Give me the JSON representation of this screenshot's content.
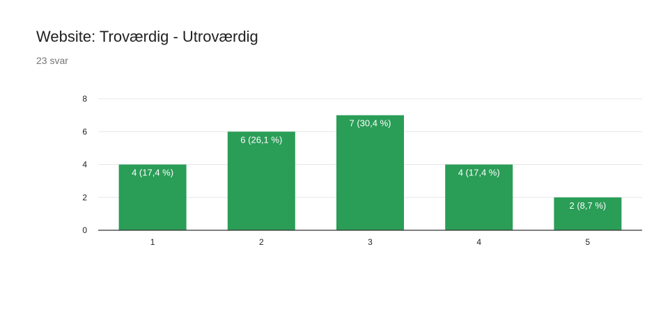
{
  "header": {
    "title": "Website: Troværdig - Utroværdig",
    "response_count": "23 svar"
  },
  "colors": {
    "bar": "#2a9d57",
    "bar_label": "#ffffff",
    "grid": "#e6e6e6",
    "axis": "#333333",
    "tick_label": "#222222"
  },
  "chart_data": {
    "type": "bar",
    "title": "Website: Troværdig - Utroværdig",
    "subtitle": "23 svar",
    "categories": [
      "1",
      "2",
      "3",
      "4",
      "5"
    ],
    "values": [
      4,
      6,
      7,
      4,
      2
    ],
    "data_labels": [
      "4 (17,4 %)",
      "6 (26,1 %)",
      "7 (30,4 %)",
      "4 (17,4 %)",
      "2 (8,7 %)"
    ],
    "ylim": [
      0,
      8
    ],
    "yticks": [
      0,
      2,
      4,
      6,
      8
    ],
    "grid": true,
    "legend": false
  }
}
